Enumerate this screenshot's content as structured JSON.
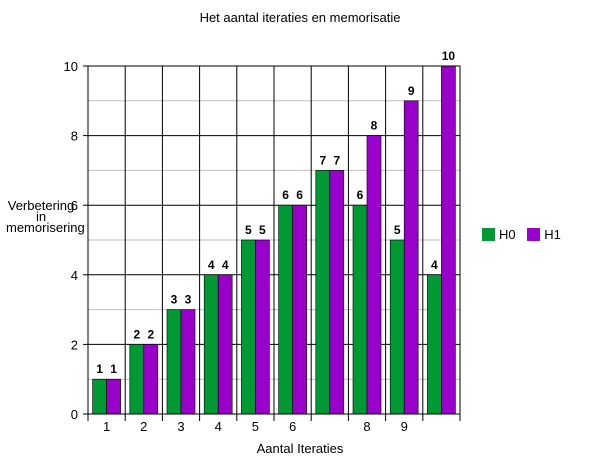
{
  "chart_data": {
    "type": "bar",
    "title": "Het aantal iteraties en memorisatie",
    "xlabel": "Aantal Iteraties",
    "ylabel_lines": [
      "Verbetering",
      "in",
      "memorisering"
    ],
    "categories": [
      "1",
      "2",
      "3",
      "4",
      "5",
      "6",
      "",
      "8",
      "9",
      ""
    ],
    "series": [
      {
        "name": "H0",
        "color": "#009933",
        "values": [
          1,
          2,
          3,
          4,
          5,
          6,
          7,
          6,
          5,
          4
        ]
      },
      {
        "name": "H1",
        "color": "#9900CC",
        "values": [
          1,
          2,
          3,
          4,
          5,
          6,
          7,
          8,
          9,
          10
        ]
      }
    ],
    "ylim": [
      0,
      10
    ],
    "yticks": [
      0,
      2,
      4,
      6,
      8,
      10
    ],
    "grid": true,
    "legend_position": "right"
  }
}
